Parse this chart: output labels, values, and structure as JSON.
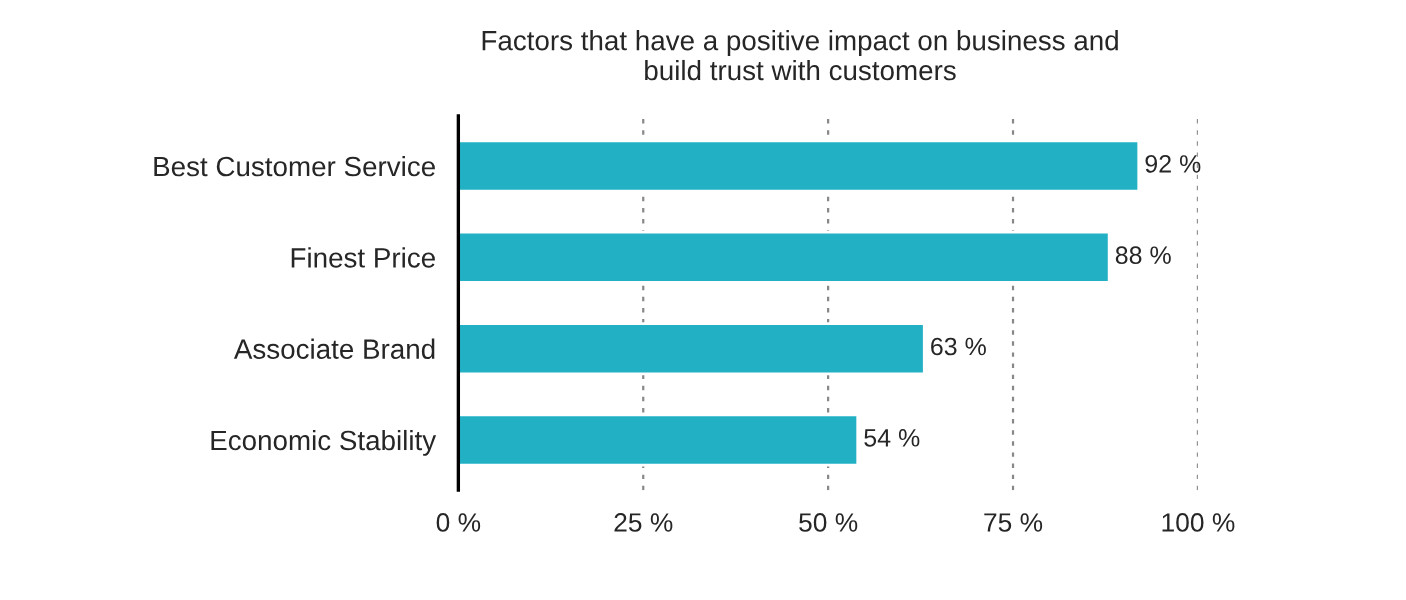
{
  "chart_data": {
    "type": "bar",
    "orientation": "horizontal",
    "title": "Factors that have a positive impact on business and\nbuild trust with customers",
    "categories": [
      "Best Customer Service",
      "Finest Price",
      "Associate Brand",
      "Economic Stability"
    ],
    "values": [
      92,
      88,
      63,
      54
    ],
    "value_labels": [
      "92 %",
      "88 %",
      "63 %",
      "54 %"
    ],
    "color": "#22b0c4",
    "xlim": [
      0,
      100
    ],
    "xticks": [
      {
        "value": 0,
        "label": "0 %"
      },
      {
        "value": 25,
        "label": "25 %"
      },
      {
        "value": 50,
        "label": "50 %"
      },
      {
        "value": 75,
        "label": "75 %"
      },
      {
        "value": 100,
        "label": "100 %"
      }
    ],
    "grid": "x"
  }
}
